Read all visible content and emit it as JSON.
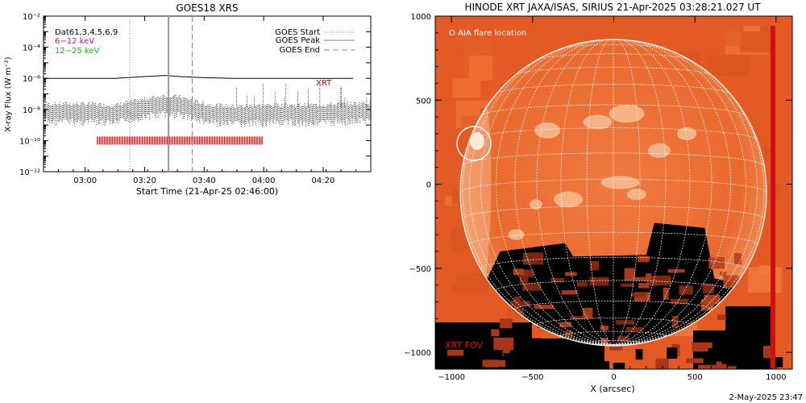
{
  "left_panel": {
    "title": "GOES18 XRS",
    "xlabel": "Start Time (21-Apr-25 02:46:00)",
    "ylabel": "X-ray Flux (W m⁻²)",
    "legend_top_left": [
      {
        "text": "Dat61,3,4,5,6,9",
        "color": "#000000"
      },
      {
        "text": "6−12 keV",
        "color": "#cc00cc"
      },
      {
        "text": "12−25 keV",
        "color": "#00cc00"
      }
    ],
    "legend_top_right": [
      {
        "text": "GOES Start",
        "style": "dotted"
      },
      {
        "text": "GOES Peak",
        "style": "solid"
      },
      {
        "text": "GOES End",
        "style": "dashed"
      }
    ],
    "xrt_label": "XRT",
    "ytick_labels": [
      "10⁻¹²",
      "10⁻¹⁰",
      "10⁻⁸",
      "10⁻⁶",
      "10⁻⁴",
      "10⁻²"
    ],
    "xtick_labels": [
      "03:00",
      "03:20",
      "03:40",
      "04:00",
      "04:20"
    ]
  },
  "right_panel": {
    "title": "HINODE XRT JAXA/ISAS, SIRIUS 21-Apr-2025 03:28:21.027 UT",
    "xlabel": "X (arcsec)",
    "ytick_labels": [
      "1000",
      "500",
      "0",
      "−500",
      "−1000"
    ],
    "xtick_labels": [
      "−1000",
      "−500",
      "0",
      "500",
      "1000"
    ],
    "aia_label": "O AIA flare location",
    "fov_label": "XRT FOV"
  },
  "footer": {
    "date": "2-May-2025 23:47"
  },
  "colors": {
    "solar_orange": "#e8622a",
    "solar_dark": "#000000",
    "xrt_red": "#cc0000",
    "grid_white": "#ffffff"
  },
  "chart_data": [
    {
      "type": "line",
      "title": "GOES18 XRS",
      "xlabel": "Start Time (21-Apr-25 02:46:00)",
      "ylabel": "X-ray Flux (W m⁻²)",
      "y_scale": "log",
      "ylim": [
        1e-12,
        0.01
      ],
      "xlim": [
        "02:46",
        "04:36"
      ],
      "series": [
        {
          "name": "Dat61,3,4,5,6,9",
          "x": [
            "02:46",
            "03:00",
            "03:10",
            "03:20",
            "03:26",
            "03:28",
            "03:32",
            "03:40",
            "03:50",
            "04:00",
            "04:20",
            "04:30"
          ],
          "values": [
            1e-06,
            1e-06,
            1e-06,
            1.3e-06,
            1.5e-06,
            1.5e-06,
            1.3e-06,
            1.1e-06,
            1e-06,
            1e-06,
            1e-06,
            1e-06
          ]
        },
        {
          "x": [
            "02:46",
            "03:00",
            "03:10",
            "03:20",
            "03:26",
            "03:28",
            "03:32",
            "03:40",
            "03:50",
            "04:00",
            "04:20",
            "04:36"
          ],
          "values": [
            1.5e-08,
            1.5e-08,
            1.2e-08,
            3e-08,
            5e-08,
            5e-08,
            4e-08,
            1.5e-08,
            1e-08,
            1.2e-08,
            1.3e-08,
            1.8e-08
          ]
        }
      ],
      "markers": {
        "GOES Start": "03:15",
        "GOES Peak": "03:28",
        "GOES End": "03:36"
      },
      "xrt_observations": {
        "start": "03:04",
        "end": "04:00",
        "level": 1e-10
      }
    },
    {
      "type": "heatmap",
      "title": "HINODE XRT JAXA/ISAS, SIRIUS 21-Apr-2025 03:28:21.027 UT",
      "xlabel": "X (arcsec)",
      "xlim": [
        -1100,
        1100
      ],
      "ylim": [
        -1100,
        1000
      ],
      "solar_radius_arcsec": 955,
      "aia_flare_location": {
        "x": -870,
        "y": 300
      }
    }
  ]
}
